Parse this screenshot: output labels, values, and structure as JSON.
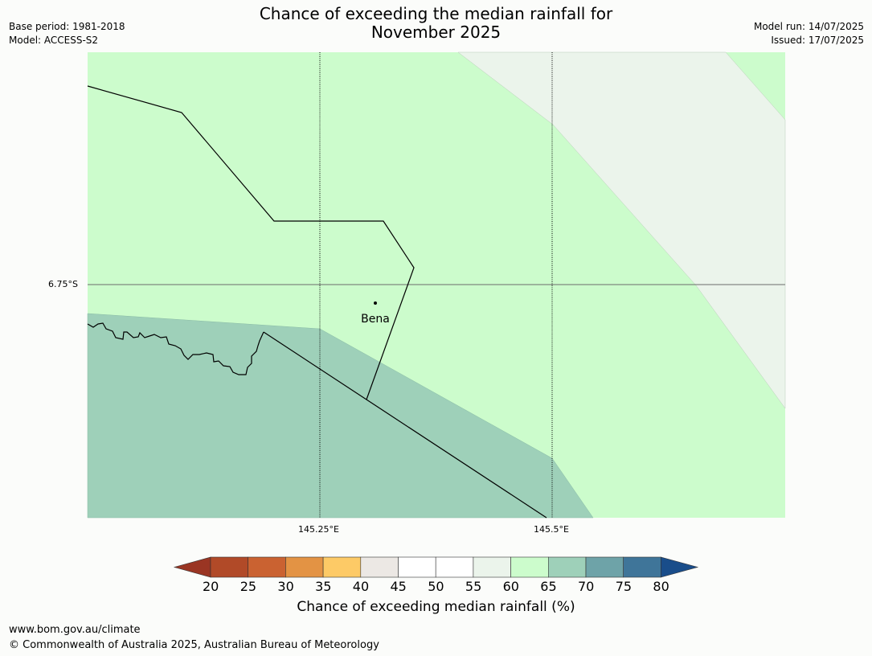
{
  "title": {
    "line1": "Chance of exceeding the median rainfall for",
    "line2": "November 2025"
  },
  "meta_left": {
    "base_period": "Base period: 1981-2018",
    "model": "Model: ACCESS-S2"
  },
  "meta_right": {
    "model_run": "Model run: 14/07/2025",
    "issued": "Issued: 17/07/2025"
  },
  "map": {
    "place_label": "Bena",
    "lat_label": "6.75°S",
    "lon_labels": [
      "145.25°E",
      "145.5°E"
    ],
    "colors": {
      "band_60_65": "#ccfccc",
      "band_55_60": "#ebf4eb",
      "band_65_70": "#9ed0b9",
      "outline": "#000000"
    }
  },
  "colorbar": {
    "ticks": [
      "20",
      "25",
      "30",
      "35",
      "40",
      "45",
      "50",
      "55",
      "60",
      "65",
      "70",
      "75",
      "80"
    ],
    "colors": [
      "#9a3523",
      "#b14a28",
      "#ca6231",
      "#e39344",
      "#fdca66",
      "#ece8e4",
      "#ffffff",
      "#ffffff",
      "#ebf4eb",
      "#ccfccc",
      "#9ed0b9",
      "#6ea3a8",
      "#3f7599",
      "#194d8a"
    ],
    "label": "Chance of exceeding median rainfall (%)"
  },
  "footer": {
    "url": "www.bom.gov.au/climate",
    "copyright": "© Commonwealth of Australia 2025, Australian Bureau of Meteorology"
  }
}
